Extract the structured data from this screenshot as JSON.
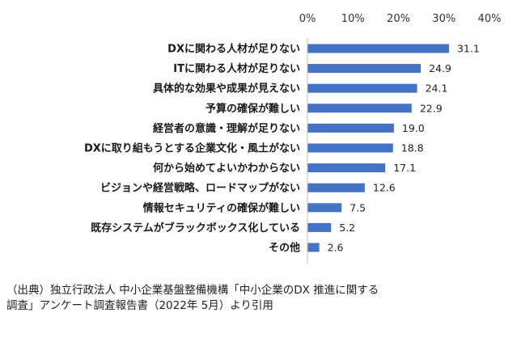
{
  "chart_data": {
    "type": "bar",
    "orientation": "horizontal",
    "categories": [
      "DXに関わる人材が足りない",
      "ITに関わる人材が足りない",
      "具体的な効果や成果が見えない",
      "予算の確保が難しい",
      "経営者の意識・理解が足りない",
      "DXに取り組もうとする企業文化・風土がない",
      "何から始めてよいかわからない",
      "ビジョンや経営戦略、ロードマップがない",
      "情報セキュリティの確保が難しい",
      "既存システムがブラックボックス化している",
      "その他"
    ],
    "values": [
      31.1,
      24.9,
      24.1,
      22.9,
      19.0,
      18.8,
      17.1,
      12.6,
      7.5,
      5.2,
      2.6
    ],
    "value_labels": [
      "31.1",
      "24.9",
      "24.1",
      "22.9",
      "19.0",
      "18.8",
      "17.1",
      "12.6",
      "7.5",
      "5.2",
      "2.6"
    ],
    "xlim": [
      0,
      40
    ],
    "xticks": [
      0,
      10,
      20,
      30,
      40
    ],
    "xtick_labels": [
      "0%",
      "10%",
      "20%",
      "30%",
      "40%"
    ],
    "axis_position": "top",
    "grid": false,
    "bar_color": "#4472c4",
    "title": "",
    "xlabel": "",
    "ylabel": ""
  },
  "source_note": "（出典）独立行政法人 中小企業基盤整備機構「中小企業のDX 推進に関する調査」アンケート調査報告書（2022年 5月）より引用"
}
